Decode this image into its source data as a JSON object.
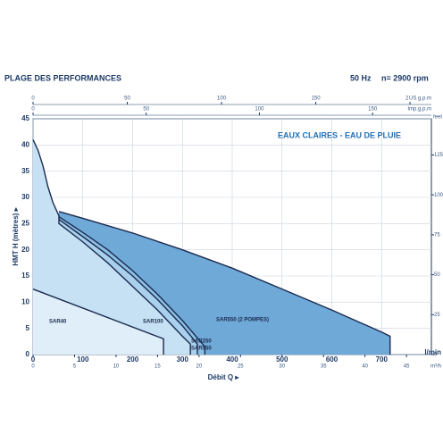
{
  "chart_data": {
    "type": "area",
    "title": "PLAGE DES PERFORMANCES",
    "frequency": "50 Hz",
    "speed": "n= 2900 rpm",
    "annotation": "EAUX CLAIRES - EAU DE PLUIE",
    "y_label": "HMT H (mètres) ▸",
    "x_label": "Débit Q ▸",
    "x_unit": "l/min",
    "x2_unit": "m³/h",
    "x3_unit": "US g.p.m",
    "x4_unit": "Imp.g.p.m",
    "y2_unit": "feet",
    "xlim": [
      0,
      800
    ],
    "xticks": [
      0,
      100,
      200,
      300,
      400,
      500,
      600,
      700
    ],
    "x2lim": [
      0,
      48
    ],
    "x2ticks": [
      0,
      5,
      10,
      15,
      20,
      25,
      30,
      35,
      40,
      45
    ],
    "x3lim": [
      0,
      211.34
    ],
    "x3ticks": [
      0,
      50,
      100,
      150,
      200
    ],
    "x4lim": [
      0,
      175.98
    ],
    "x4ticks": [
      0,
      50,
      100,
      150
    ],
    "ylim": [
      0,
      45
    ],
    "yticks": [
      0,
      5,
      10,
      15,
      20,
      25,
      30,
      35,
      40,
      45
    ],
    "y2lim": [
      0,
      147.64
    ],
    "y2ticks": [
      0,
      25,
      50,
      75,
      100,
      125
    ],
    "grid": true,
    "series": [
      {
        "name": "SAR550 (2 POMPES)",
        "color": "#6ea9d8",
        "x": [
          52,
          100,
          200,
          300,
          400,
          500,
          600,
          700,
          717,
          717
        ],
        "values": [
          27.3,
          26,
          23.2,
          20,
          16.5,
          12.5,
          8.5,
          4.3,
          3.5,
          0
        ]
      },
      {
        "name": "SAR550",
        "color": "#8cbfe4",
        "x": [
          52,
          100,
          150,
          200,
          250,
          300,
          345,
          345
        ],
        "values": [
          26.3,
          23.3,
          20,
          16,
          11.5,
          6.5,
          1.5,
          0
        ]
      },
      {
        "name": "SAR250",
        "color": "#a9d0ec",
        "x": [
          52,
          100,
          150,
          200,
          250,
          300,
          330,
          330
        ],
        "values": [
          25.8,
          22.5,
          19,
          15,
          10.5,
          5.5,
          2,
          0
        ]
      },
      {
        "name": "SAR100",
        "color": "#c6e1f3",
        "x": [
          0,
          10,
          20,
          30,
          40,
          52,
          52,
          100,
          150,
          200,
          250,
          300,
          316,
          316
        ],
        "values": [
          41,
          39,
          36,
          32,
          29,
          26.5,
          25,
          21.5,
          17.5,
          13,
          8.5,
          3.5,
          2,
          0
        ]
      },
      {
        "name": "SAR40",
        "color": "#dfeef8",
        "x": [
          0,
          262,
          262
        ],
        "values": [
          12.5,
          3,
          0
        ]
      }
    ]
  }
}
